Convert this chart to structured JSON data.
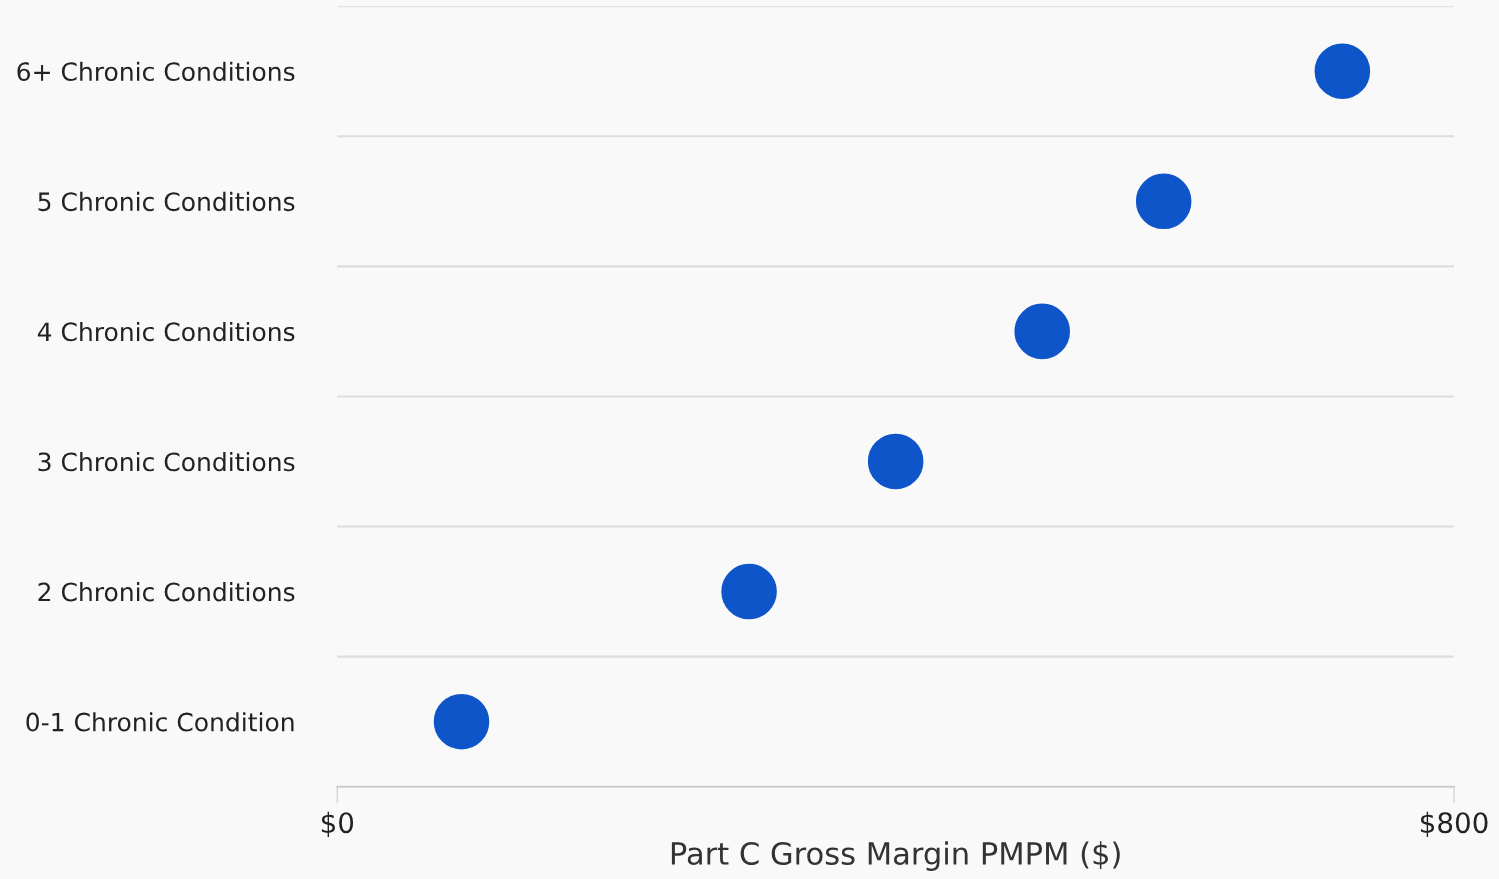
{
  "chart_data": {
    "type": "scatter",
    "orientation": "horizontal",
    "xlabel": "Part C Gross Margin PMPM ($)",
    "categories": [
      "6+ Chronic Conditions",
      "5 Chronic Conditions",
      "4 Chronic Conditions",
      "3 Chronic Conditions",
      "2 Chronic Conditions",
      "0-1 Chronic Condition"
    ],
    "series": [
      {
        "color": "#0d55c8",
        "values": [
          720,
          592,
          505,
          400,
          295,
          89
        ]
      }
    ],
    "xlim": [
      0,
      800
    ],
    "xticks": [
      {
        "value": 0,
        "label": "$0"
      },
      {
        "value": 800,
        "label": "$800"
      }
    ],
    "grid": "y",
    "marker": "circle",
    "legend": false
  }
}
